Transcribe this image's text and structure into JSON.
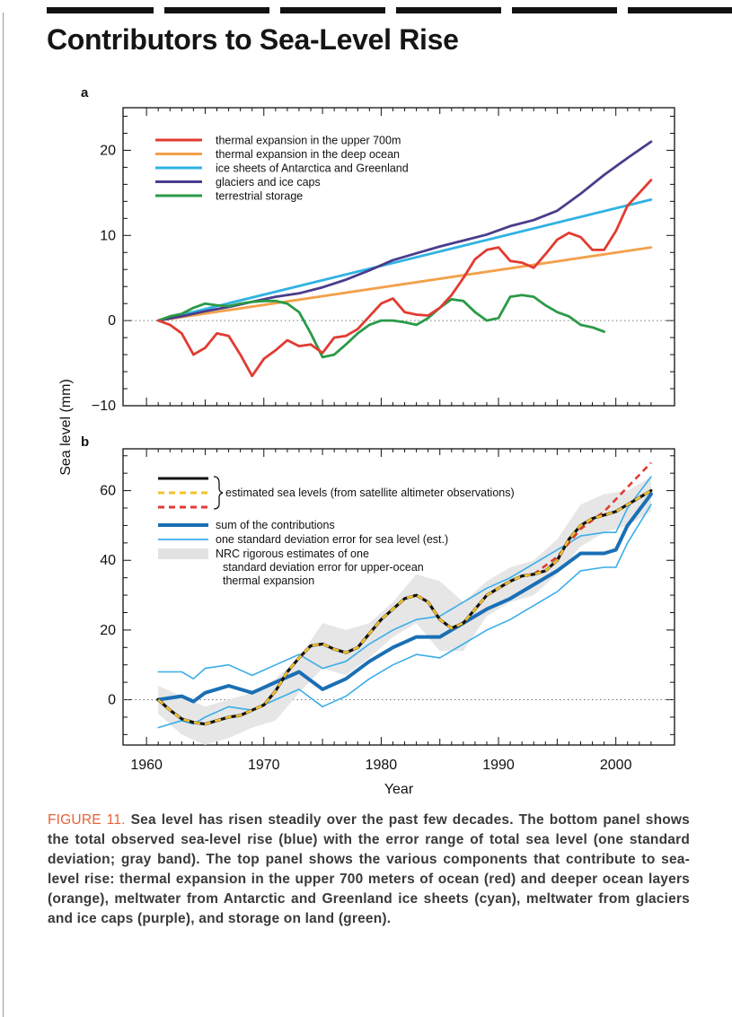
{
  "page": {
    "title": "Contributors to Sea-Level Rise",
    "caption_lead": "FIGURE 11.",
    "caption_body": " Sea level has risen steadily over the past few decades. The bottom panel shows the total observed sea-level rise (blue) with the error range of total sea level (one standard deviation; gray band). The top panel shows the various components that contribute to sea-level rise: thermal expansion in the upper 700 meters of ocean (red) and deeper ocean layers (orange), meltwater from Antarctic and Greenland ice sheets (cyan), meltwater from glaciers and ice caps (purple), and storage on land (green)."
  },
  "chart_data": [
    {
      "type": "line",
      "panel_label": "a",
      "xlim": [
        1958,
        2005
      ],
      "ylim": [
        -10,
        25
      ],
      "yticks": [
        -10,
        0,
        10,
        20
      ],
      "xlabel": "",
      "ylabel": "",
      "legend_position": "top-left",
      "zero_line": true,
      "series": [
        {
          "name": "thermal expansion in the upper 700m",
          "color": "#e23b32",
          "x": [
            1961,
            1962,
            1963,
            1964,
            1965,
            1966,
            1967,
            1968,
            1969,
            1970,
            1971,
            1972,
            1973,
            1974,
            1975,
            1976,
            1977,
            1978,
            1979,
            1980,
            1981,
            1982,
            1983,
            1984,
            1985,
            1986,
            1987,
            1988,
            1989,
            1990,
            1991,
            1992,
            1993,
            1994,
            1995,
            1996,
            1997,
            1998,
            1999,
            2000,
            2001,
            2002,
            2003
          ],
          "y": [
            0,
            -0.5,
            -1.5,
            -4,
            -3.2,
            -1.5,
            -1.8,
            -4,
            -6.5,
            -4.5,
            -3.5,
            -2.3,
            -3,
            -2.8,
            -3.8,
            -2,
            -1.8,
            -1,
            0.5,
            2,
            2.6,
            1,
            0.7,
            0.6,
            1.5,
            3,
            5,
            7.2,
            8.3,
            8.6,
            7,
            6.8,
            6.2,
            7.8,
            9.5,
            10.3,
            9.8,
            8.3,
            8.3,
            10.5,
            13.5,
            15,
            16.5
          ]
        },
        {
          "name": "thermal expansion in the deep ocean",
          "color": "#f4a04a",
          "x": [
            1961,
            2003
          ],
          "y": [
            0,
            8.6
          ]
        },
        {
          "name": "ice sheets of Antarctica and Greenland",
          "color": "#2fb3e3",
          "x": [
            1961,
            2003
          ],
          "y": [
            0,
            14.2
          ]
        },
        {
          "name": "glaciers and ice caps",
          "color": "#4a3c8c",
          "x": [
            1961,
            1963,
            1965,
            1967,
            1969,
            1971,
            1973,
            1975,
            1977,
            1979,
            1981,
            1983,
            1985,
            1987,
            1989,
            1991,
            1993,
            1995,
            1997,
            1999,
            2001,
            2003
          ],
          "y": [
            0,
            0.5,
            1.1,
            1.6,
            2.2,
            2.8,
            3.2,
            3.9,
            4.8,
            5.9,
            7.1,
            7.9,
            8.7,
            9.4,
            10.1,
            11.1,
            11.8,
            12.9,
            14.9,
            17.1,
            19.1,
            21
          ]
        },
        {
          "name": "terrestrial storage",
          "color": "#2a9a48",
          "x": [
            1961,
            1962,
            1963,
            1964,
            1965,
            1966,
            1967,
            1968,
            1969,
            1970,
            1971,
            1972,
            1973,
            1974,
            1975,
            1976,
            1977,
            1978,
            1979,
            1980,
            1981,
            1982,
            1983,
            1984,
            1985,
            1986,
            1987,
            1988,
            1989,
            1990,
            1991,
            1992,
            1993,
            1994,
            1995,
            1996,
            1997,
            1998,
            1999
          ],
          "y": [
            0,
            0.5,
            0.8,
            1.5,
            2,
            1.8,
            1.7,
            2,
            2.2,
            2.3,
            2.3,
            2,
            1,
            -1.5,
            -4.3,
            -4,
            -2.8,
            -1.5,
            -0.5,
            0,
            0,
            -0.2,
            -0.5,
            0.3,
            1.5,
            2.5,
            2.3,
            1,
            0,
            0.3,
            2.8,
            3,
            2.8,
            1.8,
            1,
            0.5,
            -0.5,
            -0.8,
            -1.3
          ]
        }
      ]
    },
    {
      "type": "line",
      "panel_label": "b",
      "xlim": [
        1958,
        2005
      ],
      "ylim": [
        -13,
        72
      ],
      "yticks": [
        0,
        20,
        40,
        60
      ],
      "xticks": [
        1960,
        1970,
        1980,
        1990,
        2000
      ],
      "xlabel": "Year",
      "ylabel": "Sea level (mm)",
      "legend_position": "top-left",
      "zero_line": true,
      "legend": {
        "group_label": "estimated sea levels (from satellite altimeter observations)",
        "items": [
          "sum of the contributions",
          "one standard deviation error for sea level (est.)",
          "NRC rigorous estimates of one",
          "standard deviation error for upper-ocean",
          "thermal expansion"
        ]
      },
      "series": [
        {
          "name": "estimated sea levels (from satellite altimeter observations)",
          "color": "#111111",
          "x": [
            1961,
            1962,
            1963,
            1964,
            1965,
            1966,
            1967,
            1968,
            1969,
            1970,
            1971,
            1972,
            1973,
            1974,
            1975,
            1976,
            1977,
            1978,
            1979,
            1980,
            1981,
            1982,
            1983,
            1984,
            1985,
            1986,
            1987,
            1988,
            1989,
            1990,
            1991,
            1992,
            1993,
            1994,
            1995,
            1996,
            1997,
            1998,
            1999,
            2000,
            2001,
            2002,
            2003
          ],
          "y": [
            0,
            -3,
            -5.5,
            -6.5,
            -7,
            -6,
            -5,
            -4.5,
            -3,
            -1.5,
            2.5,
            8,
            12,
            15.5,
            16,
            14.5,
            13.5,
            15,
            19,
            23,
            26,
            29,
            30,
            28,
            23,
            20.5,
            22,
            26,
            30,
            32,
            34,
            35.5,
            36,
            37,
            40,
            46,
            50,
            52,
            53,
            54,
            56,
            58,
            60
          ]
        },
        {
          "name": "",
          "color": "#f2c12e",
          "dashed": true,
          "x": [
            1961,
            1962,
            1963,
            1964,
            1965,
            1966,
            1967,
            1968,
            1969,
            1970,
            1971,
            1972,
            1973,
            1974,
            1975,
            1976,
            1977,
            1978,
            1979,
            1980,
            1981,
            1982,
            1983,
            1984,
            1985,
            1986,
            1987,
            1988,
            1989,
            1990,
            1991,
            1992,
            1993,
            1994,
            1995,
            1996,
            1997,
            1998,
            1999,
            2000,
            2001,
            2002,
            2003
          ],
          "y": [
            0,
            -3,
            -5.5,
            -6.5,
            -7,
            -6,
            -5,
            -4.5,
            -3,
            -1.5,
            2.5,
            8,
            12,
            15.5,
            16,
            14.5,
            13.5,
            15,
            19,
            23,
            26,
            29,
            30,
            28,
            23,
            20.5,
            22,
            26,
            30,
            32,
            34,
            35.5,
            36,
            37,
            40,
            46,
            50,
            52,
            53,
            54,
            56,
            58,
            60
          ]
        },
        {
          "name": "",
          "color": "#e23b32",
          "dashed": true,
          "x": [
            1993,
            1995,
            1997,
            1999,
            2001,
            2003
          ],
          "y": [
            36,
            41,
            49,
            54,
            61,
            68
          ]
        },
        {
          "name": "sum of the contributions",
          "color": "#1a6fb5",
          "x": [
            1961,
            1963,
            1964,
            1965,
            1967,
            1969,
            1971,
            1973,
            1975,
            1977,
            1979,
            1981,
            1983,
            1985,
            1987,
            1989,
            1991,
            1993,
            1995,
            1997,
            1999,
            2000,
            2001,
            2003
          ],
          "y": [
            0,
            1,
            -0.5,
            2,
            4,
            2,
            5,
            8,
            3,
            6,
            11,
            15,
            18,
            18,
            22,
            26,
            29,
            33,
            37,
            42,
            42,
            43,
            50,
            59
          ]
        },
        {
          "name": "one standard deviation error for sea level (est.)",
          "color": "#3aaee8",
          "x": [
            1961,
            1963,
            1964,
            1965,
            1967,
            1969,
            1971,
            1973,
            1975,
            1977,
            1979,
            1981,
            1983,
            1985,
            1987,
            1989,
            1991,
            1993,
            1995,
            1997,
            1999,
            2000,
            2001,
            2003
          ],
          "y": [
            8,
            8,
            6,
            9,
            10,
            7,
            10,
            13,
            9,
            11,
            16,
            20,
            23,
            24,
            28,
            32,
            35,
            39,
            43,
            47,
            48,
            48,
            55,
            64
          ]
        },
        {
          "name": "",
          "color": "#3aaee8",
          "x": [
            1961,
            1963,
            1964,
            1965,
            1967,
            1969,
            1971,
            1973,
            1975,
            1977,
            1979,
            1981,
            1983,
            1985,
            1987,
            1989,
            1991,
            1993,
            1995,
            1997,
            1999,
            2000,
            2001,
            2003
          ],
          "y": [
            -8,
            -6,
            -7,
            -5,
            -2,
            -3,
            0,
            3,
            -2,
            1,
            6,
            10,
            13,
            12,
            16,
            20,
            23,
            27,
            31,
            37,
            38,
            38,
            45,
            56
          ]
        },
        {
          "name": "NRC rigorous estimates of one standard deviation error for upper-ocean thermal expansion",
          "color": "#e6e6e6",
          "band": true,
          "x": [
            1961,
            1963,
            1965,
            1967,
            1969,
            1971,
            1973,
            1975,
            1977,
            1979,
            1981,
            1983,
            1985,
            1987,
            1989,
            1991,
            1993,
            1995,
            1997,
            1999,
            2001,
            2003
          ],
          "upper": [
            4,
            1,
            -2,
            0,
            2,
            6,
            12,
            22,
            20,
            22,
            28,
            36,
            34,
            28,
            34,
            38,
            40,
            46,
            56,
            59,
            60,
            64
          ],
          "lower": [
            -4,
            -10,
            -13,
            -11,
            -8,
            -6,
            2,
            9,
            7,
            12,
            18,
            22,
            14,
            14,
            24,
            28,
            30,
            36,
            44,
            48,
            50,
            54
          ]
        }
      ]
    }
  ]
}
